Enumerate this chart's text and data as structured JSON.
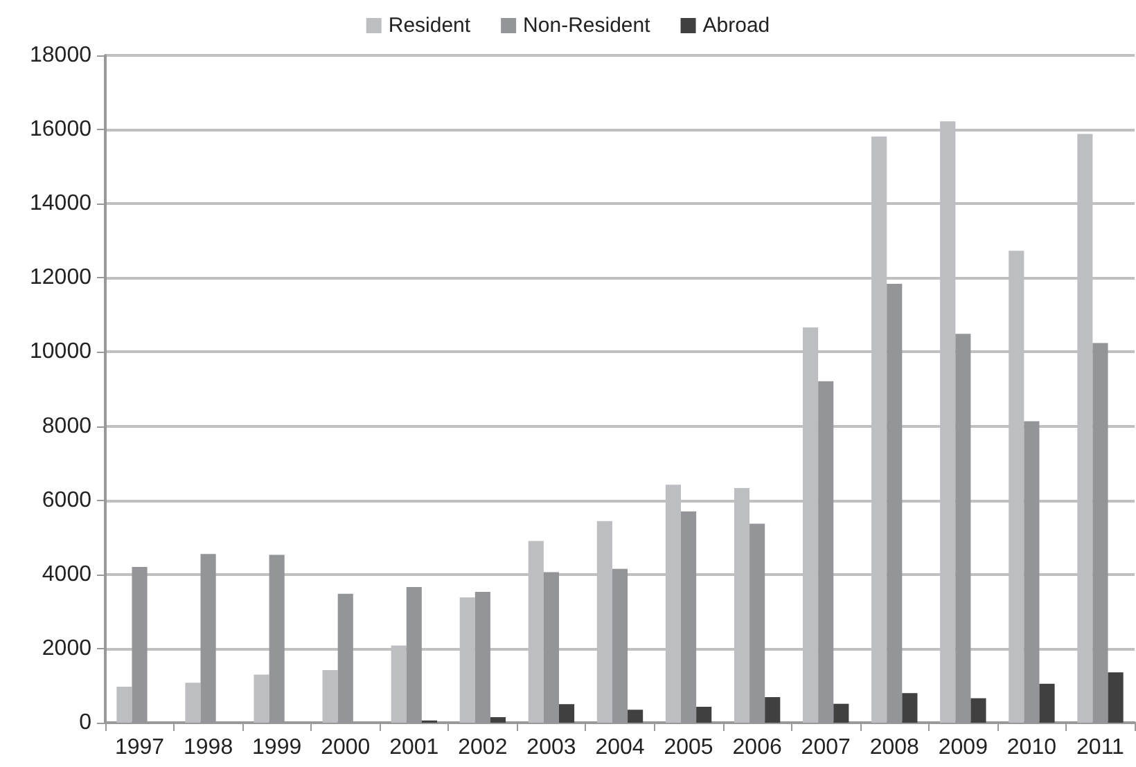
{
  "chart_data": {
    "type": "bar",
    "categories": [
      "1997",
      "1998",
      "1999",
      "2000",
      "2001",
      "2002",
      "2003",
      "2004",
      "2005",
      "2006",
      "2007",
      "2008",
      "2009",
      "2010",
      "2011"
    ],
    "series": [
      {
        "name": "Resident",
        "color": "#bdbec2",
        "values": [
          970,
          1080,
          1300,
          1420,
          2080,
          3380,
          4900,
          5440,
          6420,
          6330,
          10660,
          15810,
          16220,
          12730,
          15880
        ]
      },
      {
        "name": "Non-Resident",
        "color": "#939598",
        "values": [
          4200,
          4550,
          4530,
          3480,
          3660,
          3530,
          4060,
          4150,
          5700,
          5370,
          9210,
          11840,
          10490,
          8130,
          10240
        ]
      },
      {
        "name": "Abroad",
        "color": "#404040",
        "values": [
          null,
          null,
          null,
          null,
          60,
          150,
          500,
          350,
          430,
          690,
          510,
          800,
          660,
          1050,
          1360
        ]
      }
    ],
    "ylim": [
      0,
      18000
    ],
    "yticks": [
      0,
      2000,
      4000,
      6000,
      8000,
      10000,
      12000,
      14000,
      16000,
      18000
    ],
    "grid": "y",
    "legend": "top"
  }
}
